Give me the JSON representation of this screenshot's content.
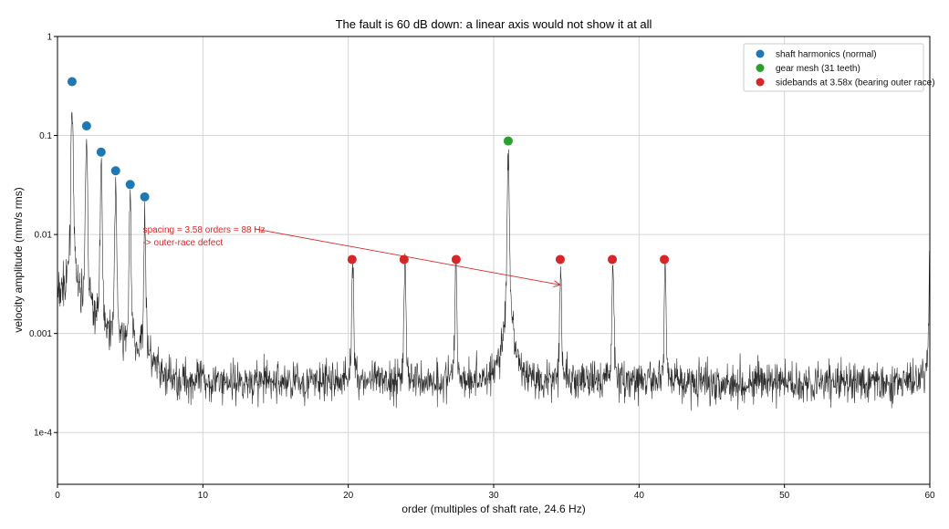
{
  "chart_data": {
    "type": "line",
    "title": "The fault is 60 dB down: a linear axis would not show it at all",
    "xlabel": "order (multiples of shaft rate, 24.6 Hz)",
    "ylabel": "velocity amplitude (mm/s rms)",
    "xlim": [
      0,
      60
    ],
    "ylim": [
      3e-05,
      1
    ],
    "yscale": "log",
    "grid": true,
    "x_ticks": [
      0,
      10,
      20,
      30,
      40,
      50,
      60
    ],
    "x_tick_labels": [
      "0",
      "10",
      "20",
      "30",
      "40",
      "50",
      "60"
    ],
    "y_ticks": [
      0.0001,
      0.001,
      0.01,
      0.1,
      1
    ],
    "y_tick_labels": [
      "1e-4",
      "0.001",
      "0.01",
      "0.1",
      "1"
    ],
    "spectrum": {
      "color": "#2b2b2b",
      "noise_floor": 0.00032,
      "peaks": [
        {
          "x": 1.0,
          "y": 0.21
        },
        {
          "x": 2.0,
          "y": 0.078
        },
        {
          "x": 3.0,
          "y": 0.042
        },
        {
          "x": 4.0,
          "y": 0.027
        },
        {
          "x": 5.0,
          "y": 0.019
        },
        {
          "x": 6.0,
          "y": 0.015
        },
        {
          "x": 20.3,
          "y": 0.0045
        },
        {
          "x": 23.9,
          "y": 0.0042
        },
        {
          "x": 27.4,
          "y": 0.0042
        },
        {
          "x": 31.0,
          "y": 0.055
        },
        {
          "x": 34.6,
          "y": 0.004
        },
        {
          "x": 38.2,
          "y": 0.0045
        },
        {
          "x": 41.8,
          "y": 0.004
        },
        {
          "x": 60.0,
          "y": 0.0053
        }
      ]
    },
    "series": [
      {
        "name": "shaft harmonics (normal)",
        "color": "#1f77b4",
        "points": [
          [
            1,
            0.35
          ],
          [
            2,
            0.125
          ],
          [
            3,
            0.068
          ],
          [
            4,
            0.044
          ],
          [
            5,
            0.032
          ],
          [
            6,
            0.024
          ]
        ]
      },
      {
        "name": "gear mesh (31 teeth)",
        "color": "#2ca02c",
        "points": [
          [
            31,
            0.088
          ]
        ]
      },
      {
        "name": "sidebands at 3.58x (bearing outer race)",
        "color": "#d62728",
        "points": [
          [
            20.26,
            0.0056
          ],
          [
            23.84,
            0.0056
          ],
          [
            27.42,
            0.0056
          ],
          [
            34.58,
            0.0056
          ],
          [
            38.16,
            0.0056
          ],
          [
            41.74,
            0.0056
          ]
        ]
      }
    ],
    "legend_position": "top-right",
    "annotation": {
      "lines": [
        "spacing = 3.58 orders = 88 Hz",
        "-> outer-race defect"
      ],
      "color": "#d62728",
      "text_x": 6.0,
      "text_y": 0.0105,
      "arrow_to": [
        34.58,
        0.0031
      ]
    }
  }
}
